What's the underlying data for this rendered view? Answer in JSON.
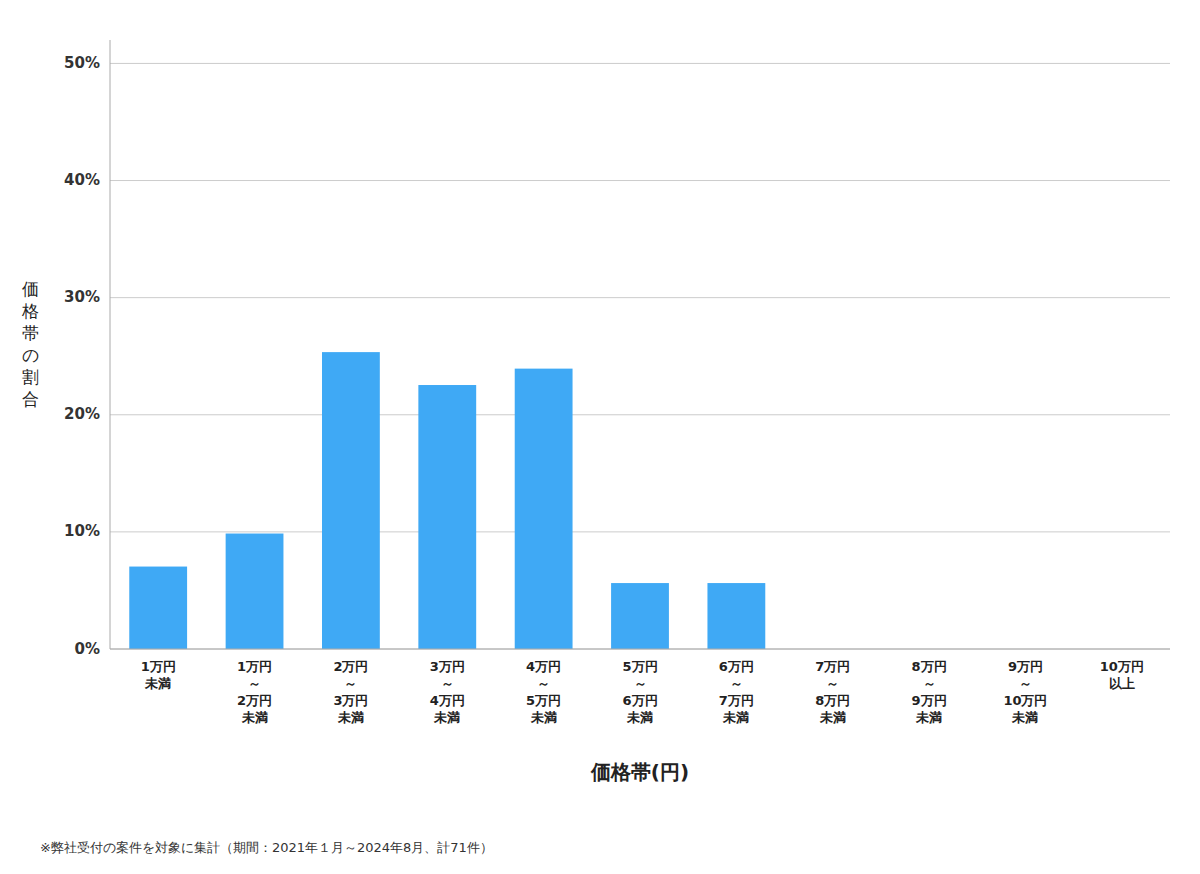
{
  "chart_data": {
    "type": "bar",
    "categories": [
      "1万円\n未満",
      "1万円\n～\n2万円\n未満",
      "2万円\n～\n3万円\n未満",
      "3万円\n～\n4万円\n未満",
      "4万円\n～\n5万円\n未満",
      "5万円\n～\n6万円\n未満",
      "6万円\n～\n7万円\n未満",
      "7万円\n～\n8万円\n未満",
      "8万円\n～\n9万円\n未満",
      "9万円\n～\n10万円\n未満",
      "10万円\n以上"
    ],
    "values": [
      0.0704,
      0.0986,
      0.2535,
      0.2254,
      0.2394,
      0.0563,
      0.0563,
      0.0,
      0.0,
      0.0,
      0.0
    ],
    "color": "#3fa9f5",
    "x_label": "価格帯(円)",
    "y_label": "価格帯の割合",
    "ylim": [
      0,
      0.52
    ],
    "yticks": [
      {
        "value": 0.0,
        "label": "0%"
      },
      {
        "value": 0.1,
        "label": "10%"
      },
      {
        "value": 0.2,
        "label": "20%"
      },
      {
        "value": 0.3,
        "label": "30%"
      },
      {
        "value": 0.4,
        "label": "40%"
      },
      {
        "value": 0.5,
        "label": "50%"
      }
    ],
    "grid": true,
    "annotations": [
      "※弊社受付の案件を対象に集計（期間：2021年１月～2024年8月、計71件）"
    ]
  }
}
